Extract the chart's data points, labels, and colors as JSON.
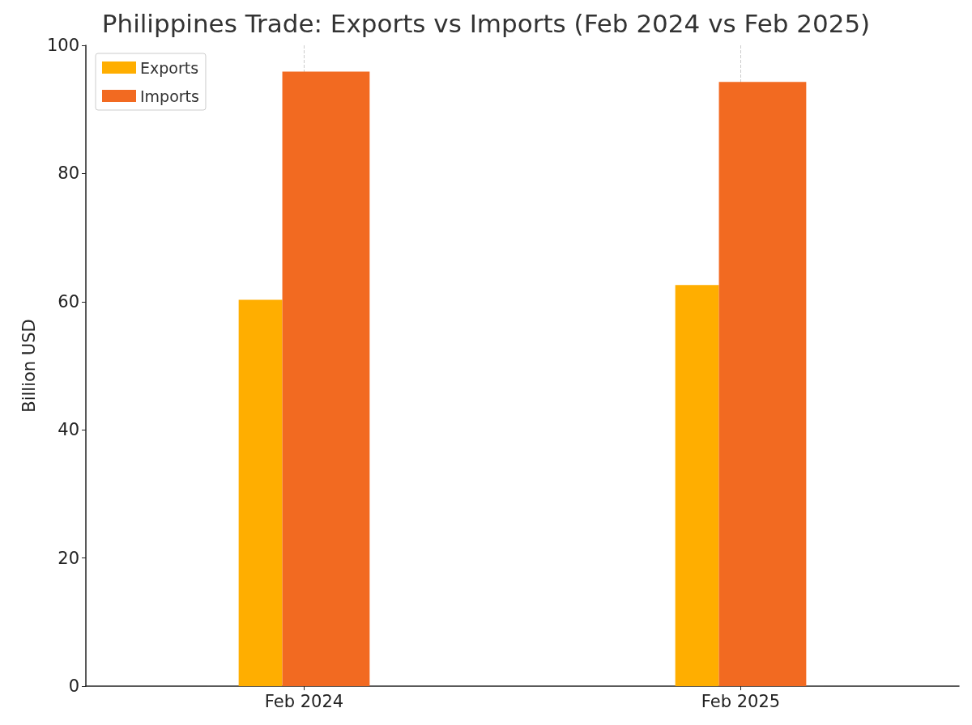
{
  "chart_data": {
    "type": "bar",
    "title": "Philippines Trade: Exports vs Imports (Feb 2024 vs Feb 2025)",
    "ylabel": "Billion USD",
    "categories": [
      "Feb 2024",
      "Feb 2025"
    ],
    "series": [
      {
        "name": "Exports",
        "color": "#ffae00",
        "values": [
          60.3,
          62.6
        ]
      },
      {
        "name": "Imports",
        "color": "#f26a21",
        "values": [
          95.9,
          94.3
        ]
      }
    ],
    "ylim": [
      0,
      100
    ],
    "yticks": [
      0,
      20,
      40,
      60,
      80,
      100
    ],
    "grid": "x",
    "legend": "top left"
  }
}
